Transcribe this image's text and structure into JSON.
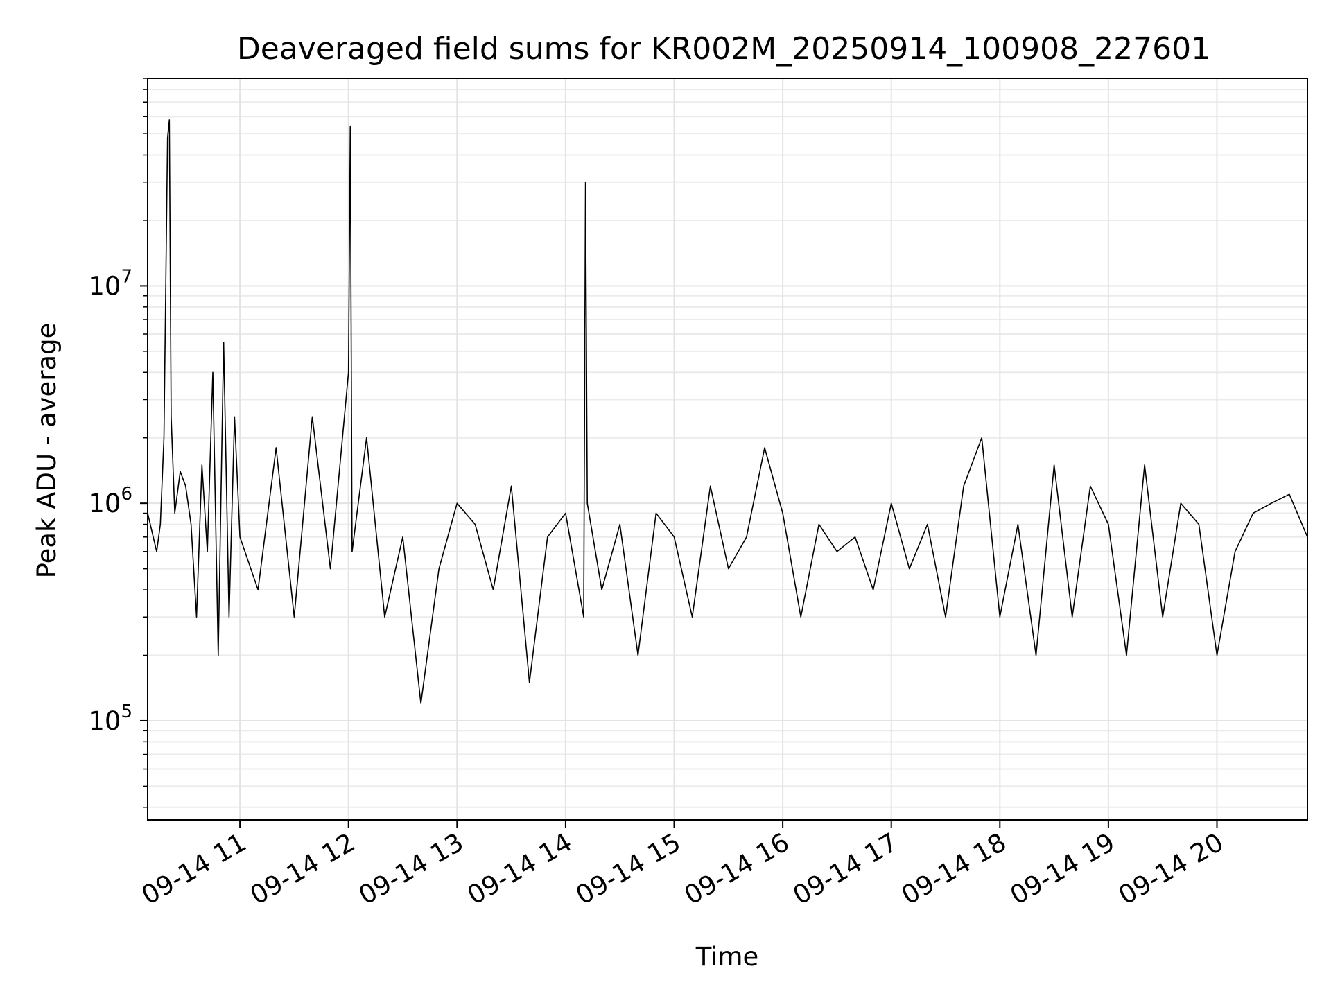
{
  "chart_data": {
    "type": "line",
    "title": "Deaveraged field sums for KR002M_20250914_100908_227601",
    "xlabel": "Time",
    "ylabel": "Peak ADU - average",
    "y_scale": "log",
    "grid": true,
    "xlim": [
      "2025-09-14 10:09",
      "2025-09-14 20:50"
    ],
    "ylim": [
      35000,
      90000000
    ],
    "x_ticks": [
      "09-14 11",
      "09-14 12",
      "09-14 13",
      "09-14 14",
      "09-14 15",
      "09-14 16",
      "09-14 17",
      "09-14 18",
      "09-14 19",
      "09-14 20"
    ],
    "y_ticks": [
      {
        "value": 100000,
        "base": "10",
        "exp": "5"
      },
      {
        "value": 1000000,
        "base": "10",
        "exp": "6"
      },
      {
        "value": 10000000,
        "base": "10",
        "exp": "7"
      }
    ],
    "series": [
      {
        "color": "#000000",
        "x": [
          "2025-09-14 10:09",
          "2025-09-14 10:14",
          "2025-09-14 10:16",
          "2025-09-14 10:18",
          "2025-09-14 10:20",
          "2025-09-14 10:21",
          "2025-09-14 10:22",
          "2025-09-14 10:24",
          "2025-09-14 10:27",
          "2025-09-14 10:30",
          "2025-09-14 10:33",
          "2025-09-14 10:36",
          "2025-09-14 10:39",
          "2025-09-14 10:42",
          "2025-09-14 10:45",
          "2025-09-14 10:48",
          "2025-09-14 10:51",
          "2025-09-14 10:54",
          "2025-09-14 10:57",
          "2025-09-14 11:00",
          "2025-09-14 11:10",
          "2025-09-14 11:20",
          "2025-09-14 11:30",
          "2025-09-14 11:40",
          "2025-09-14 11:50",
          "2025-09-14 12:00",
          "2025-09-14 12:01",
          "2025-09-14 12:02",
          "2025-09-14 12:10",
          "2025-09-14 12:20",
          "2025-09-14 12:30",
          "2025-09-14 12:40",
          "2025-09-14 12:50",
          "2025-09-14 13:00",
          "2025-09-14 13:10",
          "2025-09-14 13:20",
          "2025-09-14 13:30",
          "2025-09-14 13:40",
          "2025-09-14 13:50",
          "2025-09-14 14:00",
          "2025-09-14 14:10",
          "2025-09-14 14:11",
          "2025-09-14 14:12",
          "2025-09-14 14:20",
          "2025-09-14 14:30",
          "2025-09-14 14:40",
          "2025-09-14 14:50",
          "2025-09-14 15:00",
          "2025-09-14 15:10",
          "2025-09-14 15:20",
          "2025-09-14 15:30",
          "2025-09-14 15:40",
          "2025-09-14 15:50",
          "2025-09-14 16:00",
          "2025-09-14 16:10",
          "2025-09-14 16:20",
          "2025-09-14 16:30",
          "2025-09-14 16:40",
          "2025-09-14 16:50",
          "2025-09-14 17:00",
          "2025-09-14 17:10",
          "2025-09-14 17:20",
          "2025-09-14 17:30",
          "2025-09-14 17:40",
          "2025-09-14 17:50",
          "2025-09-14 18:00",
          "2025-09-14 18:10",
          "2025-09-14 18:20",
          "2025-09-14 18:30",
          "2025-09-14 18:40",
          "2025-09-14 18:50",
          "2025-09-14 19:00",
          "2025-09-14 19:10",
          "2025-09-14 19:20",
          "2025-09-14 19:30",
          "2025-09-14 19:40",
          "2025-09-14 19:50",
          "2025-09-14 20:00",
          "2025-09-14 20:10",
          "2025-09-14 20:20",
          "2025-09-14 20:30",
          "2025-09-14 20:40",
          "2025-09-14 20:50"
        ],
        "y": [
          900000,
          600000,
          800000,
          2000000,
          48000000,
          58000000,
          2500000,
          900000,
          1400000,
          1200000,
          800000,
          300000,
          1500000,
          600000,
          4000000,
          200000,
          5500000,
          300000,
          2500000,
          700000,
          400000,
          1800000,
          300000,
          2500000,
          500000,
          4000000,
          54000000,
          600000,
          2000000,
          300000,
          700000,
          120000,
          500000,
          1000000,
          800000,
          400000,
          1200000,
          150000,
          700000,
          900000,
          300000,
          30000000,
          1000000,
          400000,
          800000,
          200000,
          900000,
          700000,
          300000,
          1200000,
          500000,
          700000,
          1800000,
          900000,
          300000,
          800000,
          600000,
          700000,
          400000,
          1000000,
          500000,
          800000,
          300000,
          1200000,
          2000000,
          300000,
          800000,
          200000,
          1500000,
          300000,
          1200000,
          800000,
          200000,
          1500000,
          300000,
          1000000,
          800000,
          200000,
          600000,
          900000,
          1000000,
          1100000,
          700000
        ]
      }
    ]
  }
}
